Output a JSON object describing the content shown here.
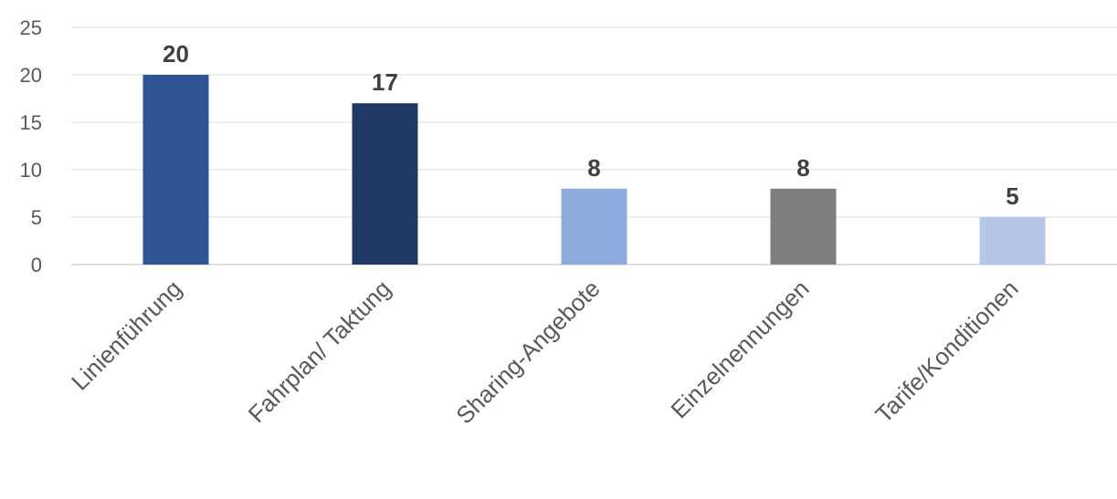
{
  "chart_data": {
    "type": "bar",
    "categories": [
      "Linienführung",
      "Fahrplan/ Taktung",
      "Sharing-Angebote",
      "Einzelnennungen",
      "Tarife/Konditionen"
    ],
    "values": [
      20,
      17,
      8,
      8,
      5
    ],
    "bar_colors": [
      "#2f5597",
      "#1f3864",
      "#8faadc",
      "#7f7f7f",
      "#b4c7e7"
    ],
    "title": "",
    "xlabel": "",
    "ylabel": "",
    "ylim": [
      0,
      25
    ],
    "yticks": [
      0,
      5,
      10,
      15,
      20,
      25
    ],
    "grid": true,
    "data_labels": true,
    "legend": "none"
  }
}
